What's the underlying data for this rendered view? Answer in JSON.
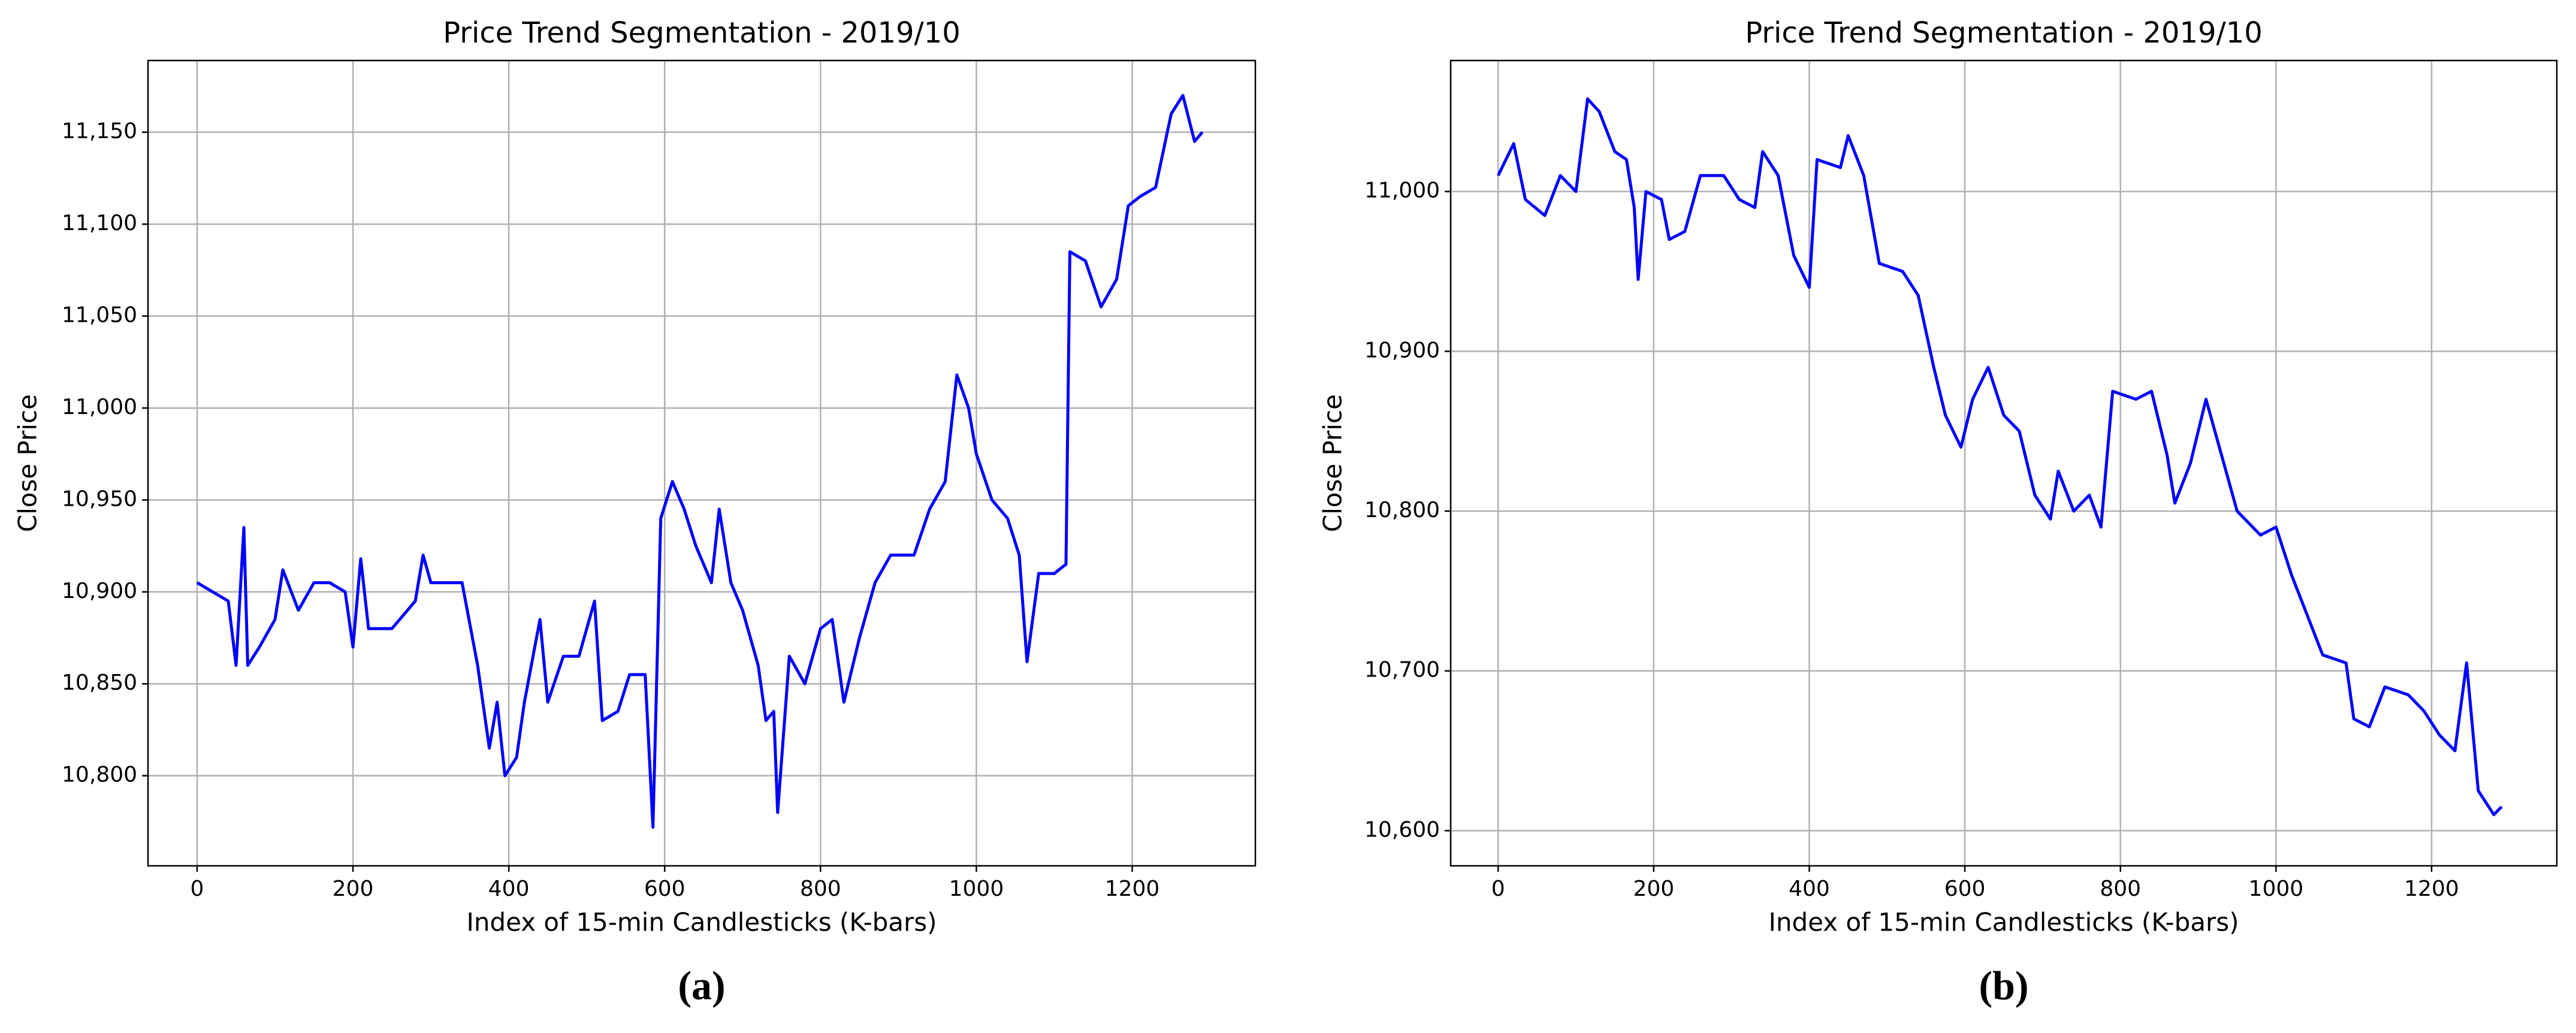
{
  "chart_data": [
    {
      "type": "line",
      "title": "Price Trend Segmentation - 2019/10",
      "caption": "(a)",
      "x_label": "Index of 15-min Candlesticks (K-bars)",
      "y_label": "Close Price",
      "xlim": [
        -63,
        1358
      ],
      "xticks": [
        0,
        200,
        400,
        600,
        800,
        1000,
        1200
      ],
      "ylim": [
        10751,
        11189
      ],
      "yticks": [
        {
          "value": 10800,
          "label": "10,800"
        },
        {
          "value": 10850,
          "label": "10,850"
        },
        {
          "value": 10900,
          "label": "10,900"
        },
        {
          "value": 10950,
          "label": "10,950"
        },
        {
          "value": 11000,
          "label": "11,000"
        },
        {
          "value": 11050,
          "label": "11,050"
        },
        {
          "value": 11100,
          "label": "11,100"
        },
        {
          "value": 11150,
          "label": "11,150"
        }
      ],
      "grid": true,
      "color": "#0000ff",
      "x": [
        0,
        20,
        40,
        50,
        60,
        65,
        80,
        100,
        110,
        130,
        150,
        170,
        190,
        200,
        210,
        220,
        250,
        280,
        290,
        300,
        340,
        360,
        375,
        385,
        395,
        410,
        420,
        440,
        450,
        470,
        490,
        510,
        520,
        540,
        555,
        575,
        585,
        595,
        610,
        625,
        640,
        660,
        670,
        685,
        700,
        720,
        730,
        740,
        745,
        760,
        780,
        800,
        815,
        830,
        850,
        870,
        890,
        920,
        940,
        960,
        975,
        990,
        1000,
        1020,
        1040,
        1055,
        1065,
        1080,
        1100,
        1115,
        1120,
        1140,
        1160,
        1180,
        1195,
        1210,
        1230,
        1250,
        1265,
        1280,
        1290
      ],
      "values": [
        10905,
        10900,
        10895,
        10860,
        10935,
        10860,
        10870,
        10885,
        10912,
        10890,
        10905,
        10905,
        10900,
        10870,
        10918,
        10880,
        10880,
        10895,
        10920,
        10905,
        10905,
        10860,
        10815,
        10840,
        10800,
        10810,
        10840,
        10885,
        10840,
        10865,
        10865,
        10895,
        10830,
        10835,
        10855,
        10855,
        10772,
        10940,
        10960,
        10945,
        10925,
        10905,
        10945,
        10905,
        10890,
        10860,
        10830,
        10835,
        10780,
        10865,
        10850,
        10880,
        10885,
        10840,
        10875,
        10905,
        10920,
        10920,
        10945,
        10960,
        11018,
        11000,
        10975,
        10950,
        10940,
        10920,
        10862,
        10910,
        10910,
        10915,
        11085,
        11080,
        11055,
        11070,
        11110,
        11115,
        11120,
        11160,
        11170,
        11145,
        11150
      ]
    },
    {
      "type": "line",
      "title": "Price Trend Segmentation - 2019/10",
      "caption": "(b)",
      "x_label": "Index of 15-min Candlesticks (K-bars)",
      "y_label": "Close Price",
      "xlim": [
        -61,
        1361
      ],
      "xticks": [
        0,
        200,
        400,
        600,
        800,
        1000,
        1200
      ],
      "ylim": [
        10578,
        11082
      ],
      "yticks": [
        {
          "value": 10600,
          "label": "10,600"
        },
        {
          "value": 10700,
          "label": "10,700"
        },
        {
          "value": 10800,
          "label": "10,800"
        },
        {
          "value": 10900,
          "label": "10,900"
        },
        {
          "value": 11000,
          "label": "11,000"
        }
      ],
      "grid": true,
      "color": "#0000ff",
      "x": [
        0,
        20,
        35,
        60,
        80,
        100,
        115,
        130,
        150,
        165,
        175,
        180,
        190,
        210,
        220,
        240,
        260,
        290,
        310,
        330,
        340,
        360,
        380,
        400,
        410,
        440,
        450,
        470,
        490,
        520,
        540,
        560,
        575,
        595,
        610,
        630,
        650,
        670,
        690,
        710,
        720,
        740,
        760,
        775,
        790,
        820,
        840,
        860,
        870,
        890,
        910,
        930,
        950,
        980,
        1000,
        1020,
        1040,
        1060,
        1090,
        1100,
        1120,
        1140,
        1170,
        1190,
        1210,
        1230,
        1245,
        1260,
        1280,
        1290
      ],
      "values": [
        11010,
        11030,
        10995,
        10985,
        11010,
        11000,
        11058,
        11050,
        11025,
        11020,
        10990,
        10945,
        11000,
        10995,
        10970,
        10975,
        11010,
        11010,
        10995,
        10990,
        11025,
        11010,
        10960,
        10940,
        11020,
        11015,
        11035,
        11010,
        10955,
        10950,
        10935,
        10890,
        10860,
        10840,
        10870,
        10890,
        10860,
        10850,
        10810,
        10795,
        10825,
        10800,
        10810,
        10790,
        10875,
        10870,
        10875,
        10835,
        10805,
        10830,
        10870,
        10835,
        10800,
        10785,
        10790,
        10760,
        10735,
        10710,
        10705,
        10670,
        10665,
        10690,
        10685,
        10675,
        10660,
        10650,
        10705,
        10625,
        10610,
        10615
      ]
    }
  ]
}
